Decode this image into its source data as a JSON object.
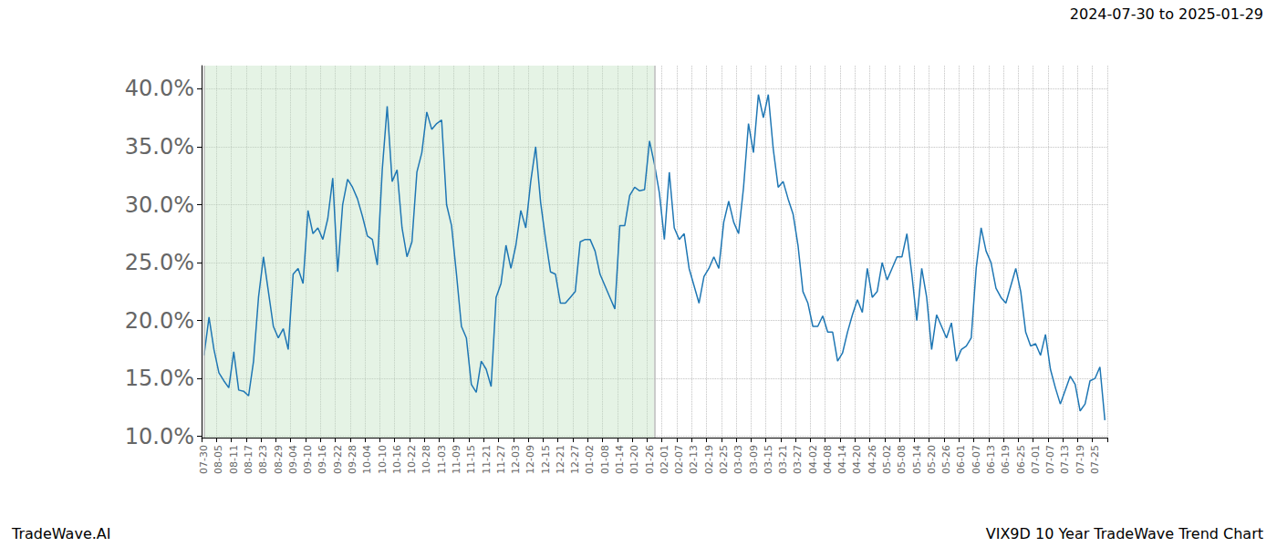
{
  "chart_data": {
    "type": "line",
    "title": "2024-07-30 to 2025-01-29",
    "footer_left": "TradeWave.AI",
    "footer_right": "VIX9D 10 Year TradeWave Trend Chart",
    "color": "#1f77b4",
    "grid": true,
    "shaded_x": [
      0,
      91
    ],
    "ylim": [
      9.9,
      42
    ],
    "yticks": [
      {
        "value": 10,
        "label": "10.0%"
      },
      {
        "value": 15,
        "label": "15.0%"
      },
      {
        "value": 20,
        "label": "20.0%"
      },
      {
        "value": 25,
        "label": "25.0%"
      },
      {
        "value": 30,
        "label": "30.0%"
      },
      {
        "value": 35,
        "label": "35.0%"
      },
      {
        "value": 40,
        "label": "40.0%"
      }
    ],
    "categories": [
      "07-30",
      null,
      null,
      "08-05",
      null,
      null,
      "08-11",
      null,
      null,
      "08-17",
      null,
      null,
      "08-23",
      null,
      null,
      "08-29",
      null,
      null,
      "09-04",
      null,
      null,
      "09-10",
      null,
      null,
      "09-16",
      null,
      null,
      "09-22",
      null,
      null,
      "09-28",
      null,
      null,
      "10-04",
      null,
      null,
      "10-10",
      null,
      null,
      "10-16",
      null,
      null,
      "10-22",
      null,
      null,
      "10-28",
      null,
      null,
      "11-03",
      null,
      null,
      "11-09",
      null,
      null,
      "11-15",
      null,
      null,
      "11-21",
      null,
      null,
      "11-27",
      null,
      null,
      "12-03",
      null,
      null,
      "12-09",
      null,
      null,
      "12-15",
      null,
      null,
      "12-21",
      null,
      null,
      "12-27",
      null,
      null,
      "01-02",
      null,
      null,
      "01-08",
      null,
      null,
      "01-14",
      null,
      null,
      "01-20",
      null,
      null,
      "01-26",
      null,
      null,
      "02-01",
      null,
      null,
      "02-07",
      null,
      null,
      "02-13",
      null,
      null,
      "02-19",
      null,
      null,
      "02-25",
      null,
      null,
      "03-03",
      null,
      null,
      "03-09",
      null,
      null,
      "03-15",
      null,
      null,
      "03-21",
      null,
      null,
      "03-27",
      null,
      null,
      "04-02",
      null,
      null,
      "04-08",
      null,
      null,
      "04-14",
      null,
      null,
      "04-20",
      null,
      null,
      "04-26",
      null,
      null,
      "05-02",
      null,
      null,
      "05-08",
      null,
      null,
      "05-14",
      null,
      null,
      "05-20",
      null,
      null,
      "05-26",
      null,
      null,
      "06-01",
      null,
      null,
      "06-07",
      null,
      null,
      "06-13",
      null,
      null,
      "06-19",
      null,
      null,
      "06-25",
      null,
      null,
      "07-01",
      null,
      null,
      "07-07",
      null,
      null,
      "07-13",
      null,
      null,
      "07-19",
      null,
      null,
      "07-25",
      null,
      null
    ],
    "values": [
      17,
      20.3,
      17.5,
      15.5,
      14.8,
      14.2,
      17.3,
      14.0,
      13.9,
      13.5,
      16.5,
      22,
      25.5,
      22.5,
      19.5,
      18.5,
      19.3,
      17.5,
      24.0,
      24.5,
      23.2,
      29.5,
      27.5,
      28.0,
      27.0,
      28.8,
      32.3,
      24.2,
      30,
      32.2,
      31.5,
      30.5,
      29.0,
      27.3,
      27.0,
      24.8,
      33,
      38.5,
      32,
      33,
      28,
      25.5,
      26.8,
      32.8,
      34.5,
      38.0,
      36.5,
      37,
      37.3,
      30,
      28.2,
      24.0,
      19.5,
      18.5,
      14.5,
      13.8,
      16.5,
      15.8,
      14.3,
      22,
      23.2,
      26.5,
      24.5,
      26.5,
      29.5,
      28,
      32,
      35.0,
      30.2,
      27,
      24.2,
      24.0,
      21.5,
      21.5,
      22.0,
      22.5,
      26.8,
      27,
      27,
      26.0,
      24,
      23,
      22,
      21,
      28.2,
      28.2,
      30.8,
      31.5,
      31.2,
      31.3,
      35.5,
      33.5,
      31,
      27,
      32.8,
      28,
      27,
      27.5,
      24.5,
      23,
      21.5,
      23.8,
      24.5,
      25.5,
      24.5,
      28.5,
      30.3,
      28.5,
      27.5,
      31.5,
      37,
      34.5,
      39.5,
      37.5,
      39.5,
      34.8,
      31.5,
      32.0,
      30.5,
      29.2,
      26.5,
      22.5,
      21.5,
      19.5,
      19.5,
      20.4,
      19,
      19.0,
      16.5,
      17.2,
      19,
      20.5,
      21.8,
      20.7,
      24.5,
      22,
      22.5,
      25,
      23.5,
      24.5,
      25.5,
      25.5,
      27.5,
      24,
      20,
      24.5,
      22,
      17.5,
      20.5,
      19.5,
      18.5,
      19.8,
      16.5,
      17.5,
      17.8,
      18.5,
      24.5,
      28,
      26,
      25,
      22.8,
      22,
      21.5,
      23,
      24.5,
      22.5,
      19,
      17.8,
      18,
      17,
      18.8,
      15.8,
      14.2,
      12.8,
      14,
      15.2,
      14.5,
      12.2,
      12.8,
      14.8,
      15.0,
      16.0,
      11.4
    ]
  }
}
